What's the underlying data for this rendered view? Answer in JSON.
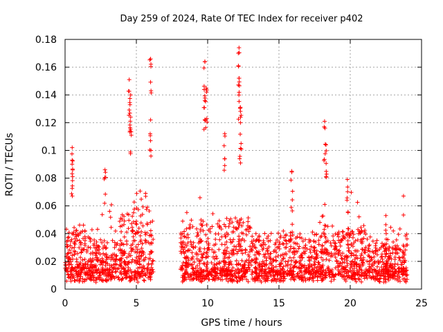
{
  "chart_data": {
    "type": "scatter",
    "title": "Day 259 of 2024, Rate Of TEC Index for receiver p402",
    "xlabel": "GPS time / hours",
    "ylabel": "ROTI / TECUs",
    "xlim": [
      0,
      25
    ],
    "ylim": [
      0,
      0.18
    ],
    "xticks": [
      0,
      5,
      10,
      15,
      20,
      25
    ],
    "xtick_labels": [
      "0",
      "5",
      "10",
      "15",
      "20",
      "25"
    ],
    "yticks": [
      0,
      0.02,
      0.04,
      0.06,
      0.08,
      0.1,
      0.12,
      0.14,
      0.16,
      0.18
    ],
    "ytick_labels": [
      "0",
      "0.02",
      "0.04",
      "0.06",
      "0.08",
      "0.1",
      "0.12",
      "0.14",
      "0.16",
      "0.18"
    ],
    "grid": true,
    "marker": "+",
    "marker_color": "#ff0000",
    "series": [
      {
        "x_range": [
          0,
          24
        ],
        "data_gap_hours": [
          6.2,
          8.1
        ],
        "typical_roti_range": [
          0.005,
          0.04
        ],
        "peaks": [
          {
            "x": 0.5,
            "y": 0.102
          },
          {
            "x": 0.5,
            "y": 0.093
          },
          {
            "x": 2.8,
            "y": 0.086
          },
          {
            "x": 4.5,
            "y": 0.151
          },
          {
            "x": 4.6,
            "y": 0.14
          },
          {
            "x": 4.6,
            "y": 0.124
          },
          {
            "x": 6.0,
            "y": 0.166
          },
          {
            "x": 6.0,
            "y": 0.122
          },
          {
            "x": 9.8,
            "y": 0.164
          },
          {
            "x": 9.9,
            "y": 0.145
          },
          {
            "x": 9.8,
            "y": 0.136
          },
          {
            "x": 11.2,
            "y": 0.112
          },
          {
            "x": 12.2,
            "y": 0.174
          },
          {
            "x": 12.2,
            "y": 0.152
          },
          {
            "x": 12.3,
            "y": 0.131
          },
          {
            "x": 12.3,
            "y": 0.12
          },
          {
            "x": 15.9,
            "y": 0.085
          },
          {
            "x": 18.2,
            "y": 0.121
          },
          {
            "x": 18.3,
            "y": 0.104
          },
          {
            "x": 19.8,
            "y": 0.079
          },
          {
            "x": 22.5,
            "y": 0.053
          }
        ]
      }
    ]
  }
}
